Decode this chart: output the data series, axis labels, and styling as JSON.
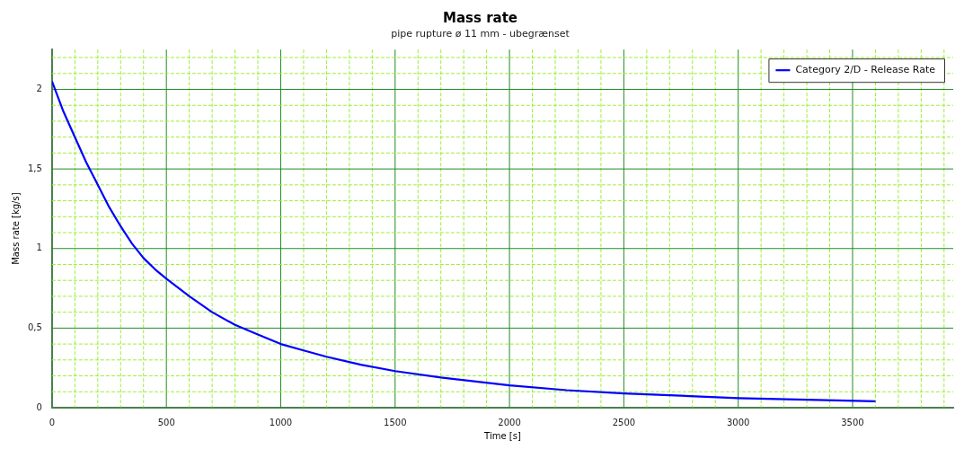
{
  "chart_data": {
    "type": "line",
    "title": "Mass rate",
    "subtitle": "pipe rupture ø 11 mm - ubegrænset",
    "xlabel": "Time [s]",
    "ylabel": "Mass rate [kg/s]",
    "series": [
      {
        "name": "Category 2/D - Release Rate",
        "color": "#0000ff",
        "x": [
          0,
          50,
          100,
          150,
          200,
          250,
          300,
          350,
          400,
          450,
          500,
          600,
          700,
          800,
          900,
          1000,
          1100,
          1200,
          1350,
          1500,
          1700,
          2000,
          2250,
          2500,
          2750,
          3000,
          3300,
          3600
        ],
        "values": [
          2.05,
          1.86,
          1.7,
          1.54,
          1.4,
          1.26,
          1.14,
          1.03,
          0.94,
          0.87,
          0.81,
          0.7,
          0.6,
          0.52,
          0.46,
          0.4,
          0.36,
          0.32,
          0.27,
          0.23,
          0.19,
          0.14,
          0.11,
          0.09,
          0.075,
          0.06,
          0.05,
          0.04
        ]
      }
    ],
    "xlim": [
      0,
      3940
    ],
    "ylim": [
      0,
      2.25
    ],
    "xticks": [
      0,
      {
        "value": 100,
        "label": null
      },
      {
        "value": 200,
        "label": null
      },
      {
        "value": 300,
        "label": null
      },
      {
        "value": 400,
        "label": null
      },
      500,
      {
        "value": 600,
        "label": null
      },
      {
        "value": 700,
        "label": null
      },
      {
        "value": 800,
        "label": null
      },
      {
        "value": 900,
        "label": null
      },
      1000,
      {
        "value": 1100,
        "label": null
      },
      {
        "value": 1200,
        "label": null
      },
      {
        "value": 1300,
        "label": null
      },
      {
        "value": 1400,
        "label": null
      },
      1500,
      {
        "value": 1600,
        "label": null
      },
      {
        "value": 1700,
        "label": null
      },
      {
        "value": 1800,
        "label": null
      },
      {
        "value": 1900,
        "label": null
      },
      2000,
      {
        "value": 2100,
        "label": null
      },
      {
        "value": 2200,
        "label": null
      },
      {
        "value": 2300,
        "label": null
      },
      {
        "value": 2400,
        "label": null
      },
      2500,
      {
        "value": 2600,
        "label": null
      },
      {
        "value": 2700,
        "label": null
      },
      {
        "value": 2800,
        "label": null
      },
      {
        "value": 2900,
        "label": null
      },
      3000,
      {
        "value": 3100,
        "label": null
      },
      {
        "value": 3200,
        "label": null
      },
      {
        "value": 3300,
        "label": null
      },
      {
        "value": 3400,
        "label": null
      },
      3500,
      {
        "value": 3600,
        "label": null
      },
      {
        "value": 3700,
        "label": null
      },
      {
        "value": 3800,
        "label": null
      },
      {
        "value": 3900,
        "label": null
      }
    ],
    "yticks": [
      0,
      {
        "value": 0.1,
        "label": null
      },
      {
        "value": 0.2,
        "label": null
      },
      {
        "value": 0.3,
        "label": null
      },
      {
        "value": 0.4,
        "label": null
      },
      {
        "value": 0.5,
        "label": "0,5"
      },
      {
        "value": 0.6,
        "label": null
      },
      {
        "value": 0.7,
        "label": null
      },
      {
        "value": 0.8,
        "label": null
      },
      {
        "value": 0.9,
        "label": null
      },
      1,
      {
        "value": 1.1,
        "label": null
      },
      {
        "value": 1.2,
        "label": null
      },
      {
        "value": 1.3,
        "label": null
      },
      {
        "value": 1.4,
        "label": null
      },
      {
        "value": 1.5,
        "label": "1,5"
      },
      {
        "value": 1.6,
        "label": null
      },
      {
        "value": 1.7,
        "label": null
      },
      {
        "value": 1.8,
        "label": null
      },
      {
        "value": 1.9,
        "label": null
      },
      2,
      {
        "value": 2.1,
        "label": null
      },
      {
        "value": 2.2,
        "label": null
      }
    ],
    "grid": true,
    "legend": "top right",
    "marker": "none",
    "line_style": "solid"
  }
}
